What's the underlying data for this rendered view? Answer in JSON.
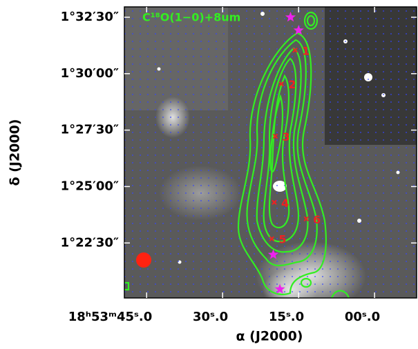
{
  "chart_data": {
    "type": "scatter",
    "annotation": "C¹⁸O(1−0)+8um",
    "annotation_color": "#33ee22",
    "xlabel": "α (J2000)",
    "ylabel": "δ (J2000)",
    "xlim": [
      49.4,
      -8.3
    ],
    "ylim": [
      1.3344,
      1.5493
    ],
    "xticks": [
      {
        "value": 45,
        "label": "18ʰ53ᵐ45ˢ.0"
      },
      {
        "value": 30,
        "label": "30ˢ.0"
      },
      {
        "value": 15,
        "label": "15ˢ.0"
      },
      {
        "value": 0,
        "label": "00ˢ.0"
      }
    ],
    "yticks": [
      {
        "value": 1.541667,
        "label": "1°32′30″"
      },
      {
        "value": 1.5,
        "label": "1°30′00″"
      },
      {
        "value": 1.458333,
        "label": "1°27′30″"
      },
      {
        "value": 1.416667,
        "label": "1°25′00″"
      },
      {
        "value": 1.375,
        "label": "1°22′30″"
      }
    ],
    "sources": {
      "color": "#ee2222",
      "labels": [
        "1",
        "2",
        "3",
        "4",
        "5",
        "6"
      ],
      "x": [
        15.7,
        18.4,
        19.6,
        19.8,
        20.3,
        13.5
      ],
      "y": [
        1.5173,
        1.4924,
        1.4538,
        1.405,
        1.3781,
        1.3928
      ]
    },
    "stars": {
      "color": "#ee22ee",
      "x": [
        16.6,
        15.0,
        20.0,
        18.7
      ],
      "y": [
        1.5417,
        1.532,
        1.3664,
        1.3409
      ]
    }
  }
}
